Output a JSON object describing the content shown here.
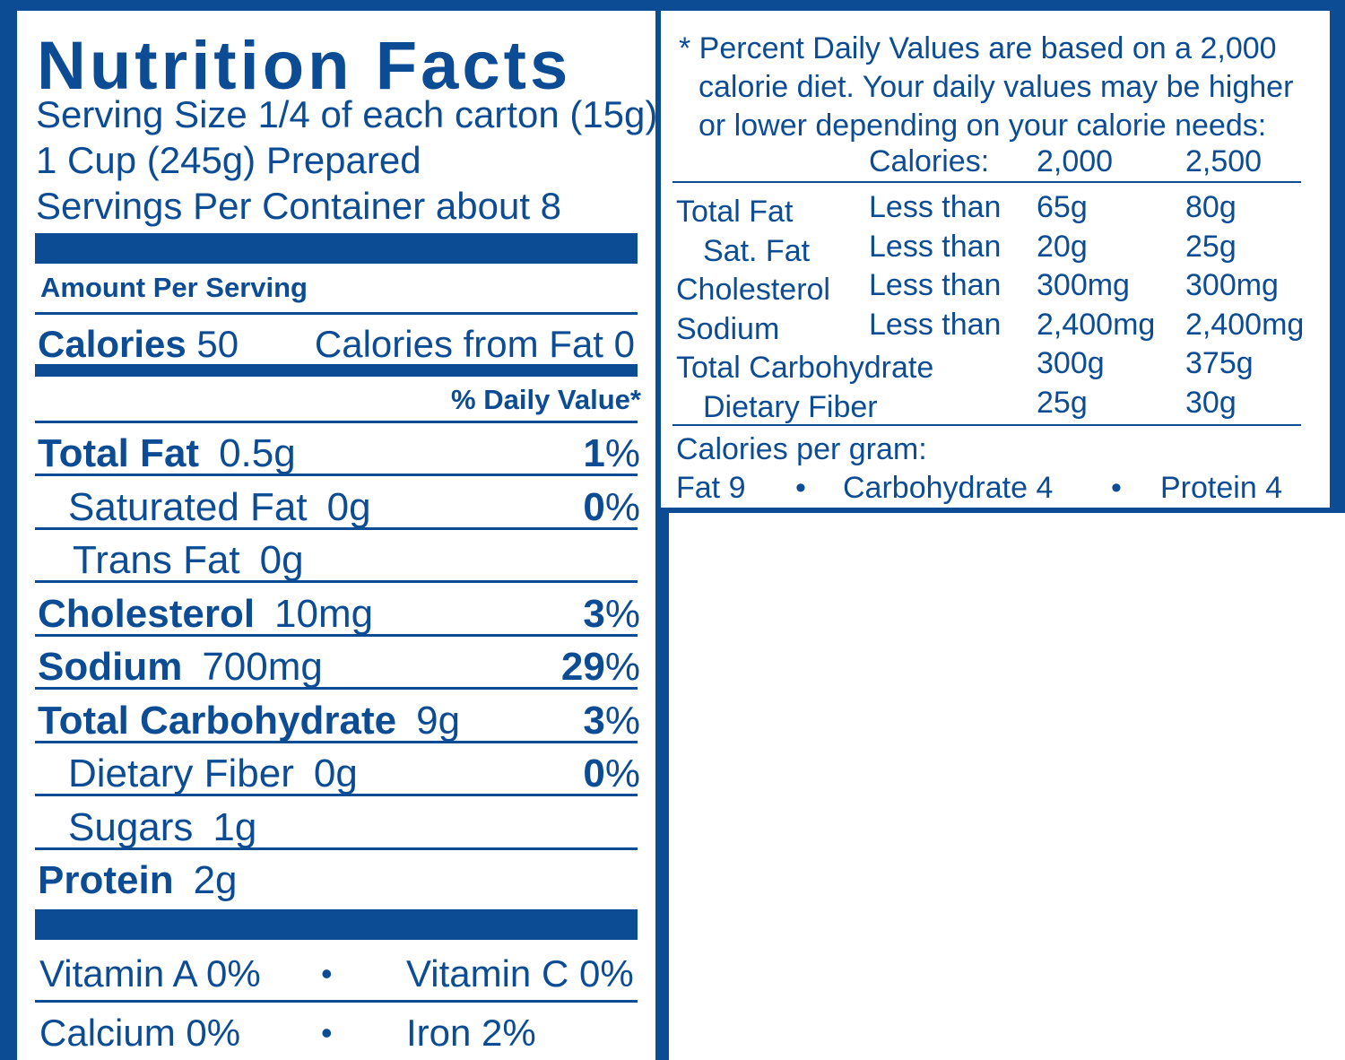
{
  "label": {
    "title": "Nutrition Facts",
    "serving_size": "Serving Size 1/4 of each carton (15g)",
    "prepared": "1 Cup (245g) Prepared",
    "servings_per_container": "Servings Per Container about 8",
    "amount_per_serving": "Amount Per Serving",
    "calories_label": "Calories",
    "calories_value": "50",
    "calories_from_fat": "Calories from Fat 0",
    "daily_value_header": "% Daily Value*",
    "nutrients": [
      {
        "name": "Total Fat",
        "amount": "0.5g",
        "dv": "1",
        "bold": true,
        "indent": 0
      },
      {
        "name": "Saturated Fat",
        "amount": "0g",
        "dv": "0",
        "bold": false,
        "indent": 1
      },
      {
        "name": "Trans Fat",
        "amount": "0g",
        "dv": "",
        "bold": false,
        "indent": 2
      },
      {
        "name": "Cholesterol",
        "amount": "10mg",
        "dv": "3",
        "bold": true,
        "indent": 0
      },
      {
        "name": "Sodium",
        "amount": "700mg",
        "dv": "29",
        "bold": true,
        "indent": 0
      },
      {
        "name": "Total Carbohydrate",
        "amount": "9g",
        "dv": "3",
        "bold": true,
        "indent": 0
      },
      {
        "name": "Dietary Fiber",
        "amount": "0g",
        "dv": "0",
        "bold": false,
        "indent": 1
      },
      {
        "name": "Sugars",
        "amount": "1g",
        "dv": "",
        "bold": false,
        "indent": 1
      },
      {
        "name": "Protein",
        "amount": "2g",
        "dv": "",
        "bold": true,
        "indent": 0
      }
    ],
    "percent_sign": "%",
    "vitamins": {
      "vitamin_a": "Vitamin A 0%",
      "vitamin_c": "Vitamin C 0%",
      "calcium": "Calcium 0%",
      "iron": "Iron 2%",
      "separator": "•"
    }
  },
  "footnote": {
    "line1": "* Percent Daily Values are based on a 2,000",
    "line2": "calorie diet. Your daily values may be higher",
    "line3": "or lower depending on your calorie needs:",
    "calories_header": "Calories:",
    "col_2000": "2,000",
    "col_2500": "2,500",
    "rows": [
      {
        "name": "Total Fat",
        "qualifier": "Less than",
        "v2000": "65g",
        "v2500": "80g"
      },
      {
        "name": "Sat. Fat",
        "qualifier": "Less than",
        "v2000": "20g",
        "v2500": "25g"
      },
      {
        "name": "Cholesterol",
        "qualifier": "Less than",
        "v2000": "300mg",
        "v2500": "300mg"
      },
      {
        "name": "Sodium",
        "qualifier": "Less than",
        "v2000": "2,400mg",
        "v2500": "2,400mg"
      },
      {
        "name": "Total Carbohydrate",
        "qualifier": "",
        "v2000": "300g",
        "v2500": "375g"
      },
      {
        "name": "Dietary Fiber",
        "qualifier": "",
        "v2000": "25g",
        "v2500": "30g"
      }
    ],
    "calories_per_gram": "Calories per gram:",
    "fat": "Fat  9",
    "carbohydrate": "Carbohydrate  4",
    "protein": "Protein  4",
    "separator": "•"
  },
  "colors": {
    "ink": "#0c4c95",
    "background": "#ffffff"
  }
}
